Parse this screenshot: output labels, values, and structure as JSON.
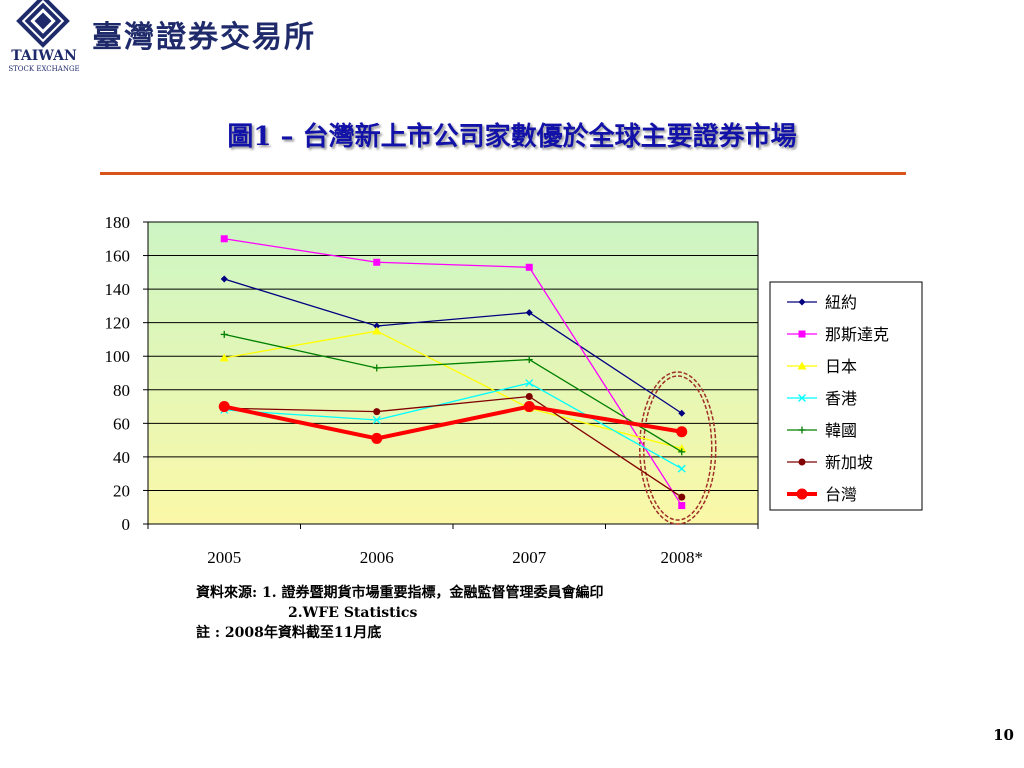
{
  "header": {
    "logo_text": "TAIWAN",
    "logo_subtext": "STOCK EXCHANGE",
    "org_name": "臺灣證券交易所"
  },
  "title": "圖1 – 台灣新上市公司家數優於全球主要證券市場",
  "notes": {
    "source_line1": "資料來源: 1. 證券暨期貨市場重要指標，金融監督管理委員會編印",
    "source_line2": "2.WFE Statistics",
    "footnote": "註 : 2008年資料截至11月底"
  },
  "page_number": "10",
  "chart_data": {
    "type": "line",
    "categories": [
      "2005",
      "2006",
      "2007",
      "2008*"
    ],
    "ylim": [
      0,
      180
    ],
    "yticks": [
      "0",
      "20",
      "40",
      "60",
      "80",
      "100",
      "120",
      "140",
      "160",
      "180"
    ],
    "grid": true,
    "legend_position": "right",
    "highlight": {
      "category": "2008*",
      "shape": "dashed-ellipse",
      "color": "#a0302a"
    },
    "series": [
      {
        "name": "紐約",
        "values": [
          146,
          118,
          126,
          66
        ],
        "color": "#000080",
        "marker": "diamond"
      },
      {
        "name": "那斯達克",
        "values": [
          170,
          156,
          153,
          11
        ],
        "color": "#ff00ff",
        "marker": "square"
      },
      {
        "name": "日本",
        "values": [
          99,
          115,
          69,
          45
        ],
        "color": "#ffff00",
        "marker": "triangle"
      },
      {
        "name": "香港",
        "values": [
          68,
          62,
          84,
          33
        ],
        "color": "#00ffff",
        "marker": "x"
      },
      {
        "name": "韓國",
        "values": [
          113,
          93,
          98,
          43
        ],
        "color": "#008000",
        "marker": "plus"
      },
      {
        "name": "新加坡",
        "values": [
          69,
          67,
          76,
          16
        ],
        "color": "#800000",
        "marker": "circle"
      },
      {
        "name": "台灣",
        "values": [
          70,
          51,
          70,
          55
        ],
        "color": "#ff0000",
        "marker": "circle",
        "bold": true
      }
    ]
  }
}
